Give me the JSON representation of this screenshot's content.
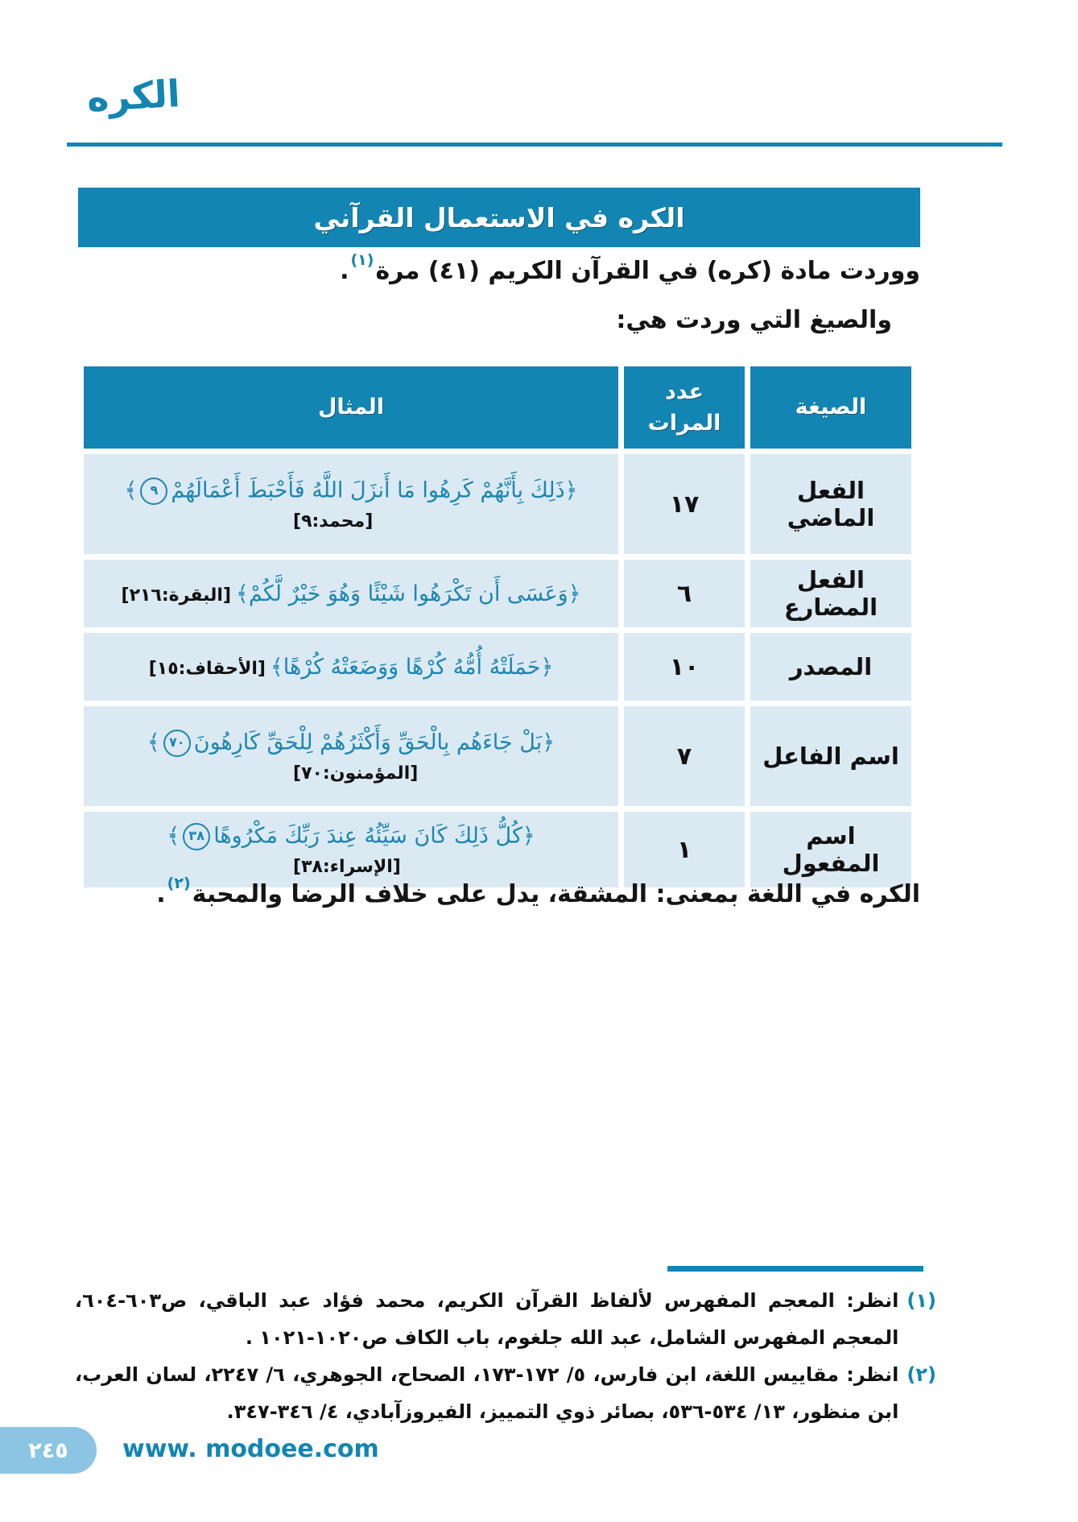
{
  "page": {
    "margin_title": "الكره",
    "page_number": "٢٤٥",
    "website": "www. modoee.com"
  },
  "banner": {
    "title": "الكره في الاستعمال القرآني"
  },
  "intro": {
    "occurrence_text": "ووردت مادة (كره) في القرآن الكريم (٤١) مرة",
    "occurrence_footnote_ref": "(١)",
    "occurrence_period": ".",
    "forms_lead_in": "والصيغ التي وردت هي:"
  },
  "table": {
    "headers": {
      "form": "الصيغة",
      "count": "عدد المرات",
      "example": "المثال"
    },
    "rows": [
      {
        "form": "الفعل الماضي",
        "count": "١٧",
        "verse_text": "﴿ذَلِكَ بِأَنَّهُمْ كَرِهُوا مَا أَنزَلَ اللَّهُ فَأَحْبَطَ أَعْمَالَهُمْ",
        "ayah_number": "٩",
        "verse_close": "﴾",
        "reference": "[محمد:٩]"
      },
      {
        "form": "الفعل المضارع",
        "count": "٦",
        "verse_text": "﴿وَعَسَى أَن تَكْرَهُوا شَيْئًا وَهُوَ خَيْرٌ لَّكُمْ﴾",
        "reference": "[البقرة:٢١٦]"
      },
      {
        "form": "المصدر",
        "count": "١٠",
        "verse_text": "﴿حَمَلَتْهُ أُمُّهُ كُرْهًا وَوَضَعَتْهُ كُرْهًا﴾",
        "reference": "[الأحقاف:١٥]"
      },
      {
        "form": "اسم الفاعل",
        "count": "٧",
        "verse_text": "﴿بَلْ جَاءَهُم بِالْحَقِّ وَأَكْثَرُهُمْ لِلْحَقِّ كَارِهُونَ",
        "ayah_number": "٧٠",
        "verse_close": "﴾",
        "reference": "[المؤمنون:٧٠]"
      },
      {
        "form": "اسم المفعول",
        "count": "١",
        "verse_text": "﴿كُلُّ ذَلِكَ كَانَ سَيِّئُهُ عِندَ رَبِّكَ مَكْرُوهًا",
        "ayah_number": "٣٨",
        "verse_close": "﴾",
        "reference": "[الإسراء:٣٨]"
      }
    ]
  },
  "conclusion": {
    "text": "الكره في اللغة بمعنى: المشقة، يدل على خلاف الرضا والمحبة",
    "footnote_ref": "(٢)",
    "period": "."
  },
  "footnotes": [
    {
      "marker": "(١)",
      "text": "انظر: المعجم المفهرس لألفاظ القرآن الكريم، محمد فؤاد عبد الباقي، ص٦٠٣-٦٠٤، المعجم المفهرس الشامل، عبد الله جلغوم، باب الكاف ص١٠٢٠-١٠٢١ ."
    },
    {
      "marker": "(٢)",
      "text": "انظر: مقاييس اللغة، ابن فارس، ٥/ ١٧٢-١٧٣، الصحاح، الجوهري، ٦/ ٢٢٤٧، لسان العرب، ابن منظور، ١٣/ ٥٣٤-٥٣٦، بصائر ذوي التمييز، الفيروزآبادي، ٤/ ٣٤٦-٣٤٧."
    }
  ],
  "colors": {
    "primary_blue": "#1385b3",
    "row_light_blue": "#dbe9f3",
    "verse_blue": "#1d86b0",
    "page_tab_blue": "#8cc5e3"
  }
}
